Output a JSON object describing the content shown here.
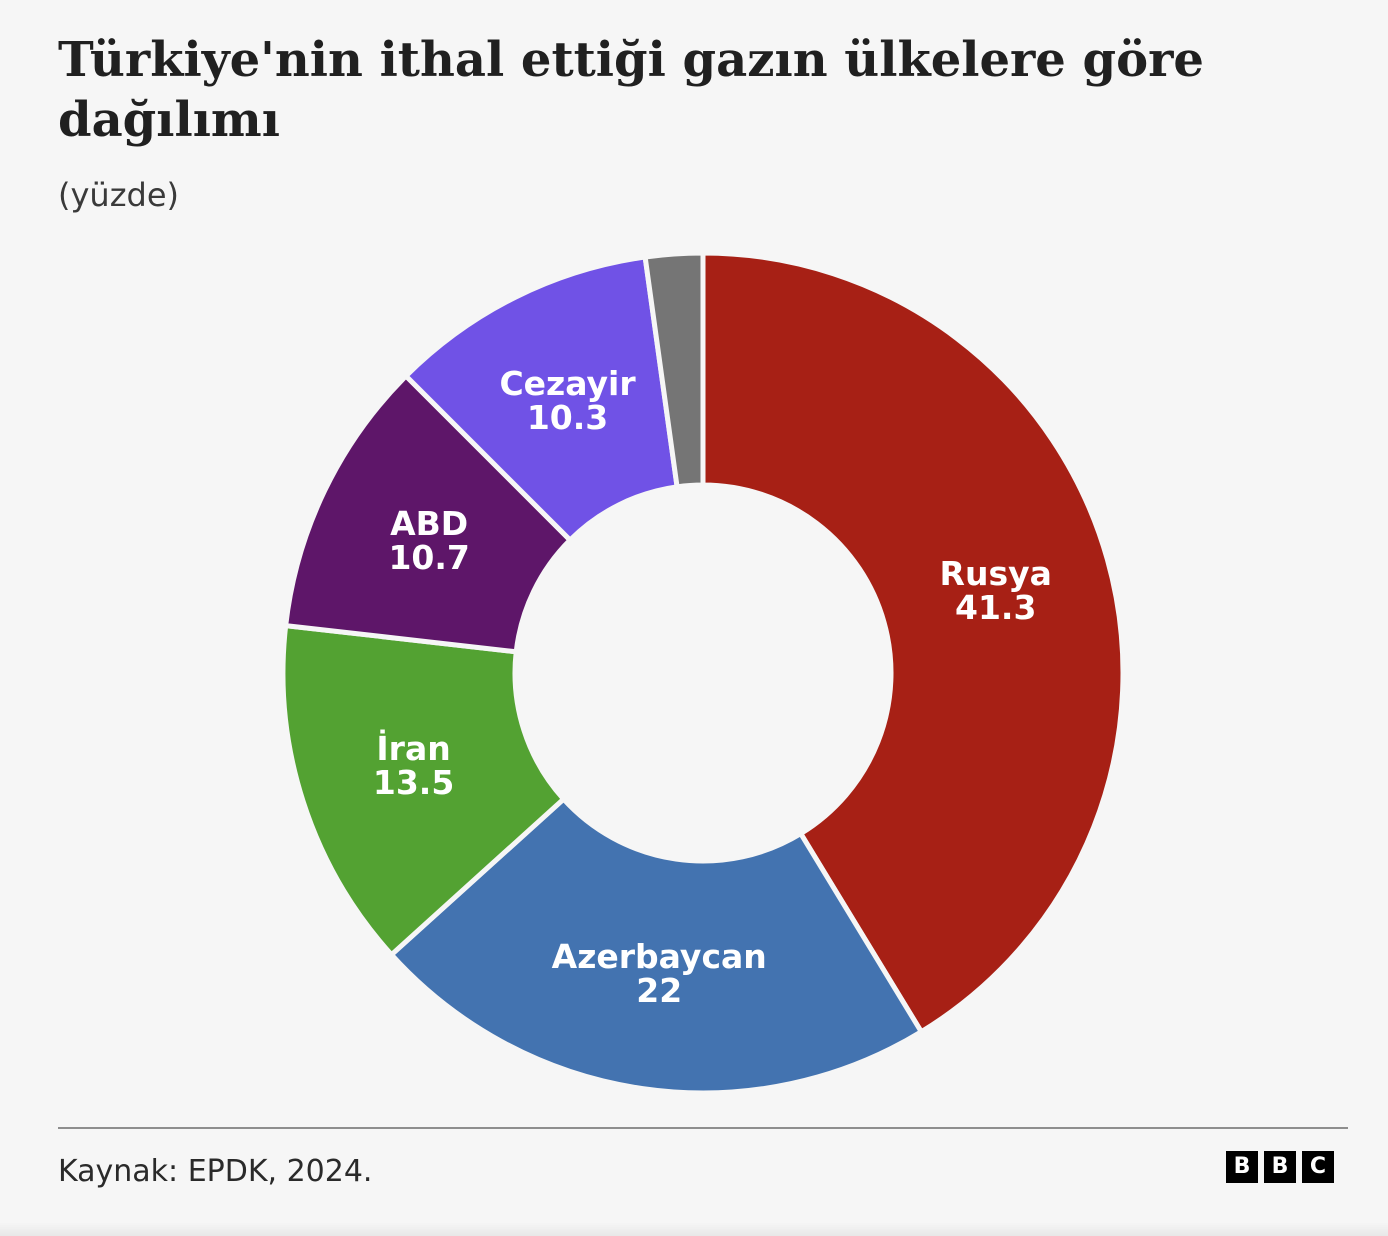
{
  "chart_data": {
    "type": "pie",
    "title": "Türkiye'nin ithal ettiği gazın ülkelere göre dağılımı",
    "subtitle": "(yüzde)",
    "slices": [
      {
        "label": "Rusya",
        "value": 41.3,
        "value_label": "41.3",
        "color": "#a72015"
      },
      {
        "label": "Azerbaycan",
        "value": 22,
        "value_label": "22",
        "color": "#4373b0"
      },
      {
        "label": "İran",
        "value": 13.5,
        "value_label": "13.5",
        "color": "#53a232"
      },
      {
        "label": "ABD",
        "value": 10.7,
        "value_label": "10.7",
        "color": "#5e1669"
      },
      {
        "label": "Cezayir",
        "value": 10.3,
        "value_label": "10.3",
        "color": "#7052e6"
      },
      {
        "label": "",
        "value": 2.2,
        "value_label": "",
        "color": "#757575"
      }
    ]
  },
  "footer": {
    "source": "Kaynak: EPDK, 2024.",
    "logo_letters": [
      "B",
      "B",
      "C"
    ]
  }
}
